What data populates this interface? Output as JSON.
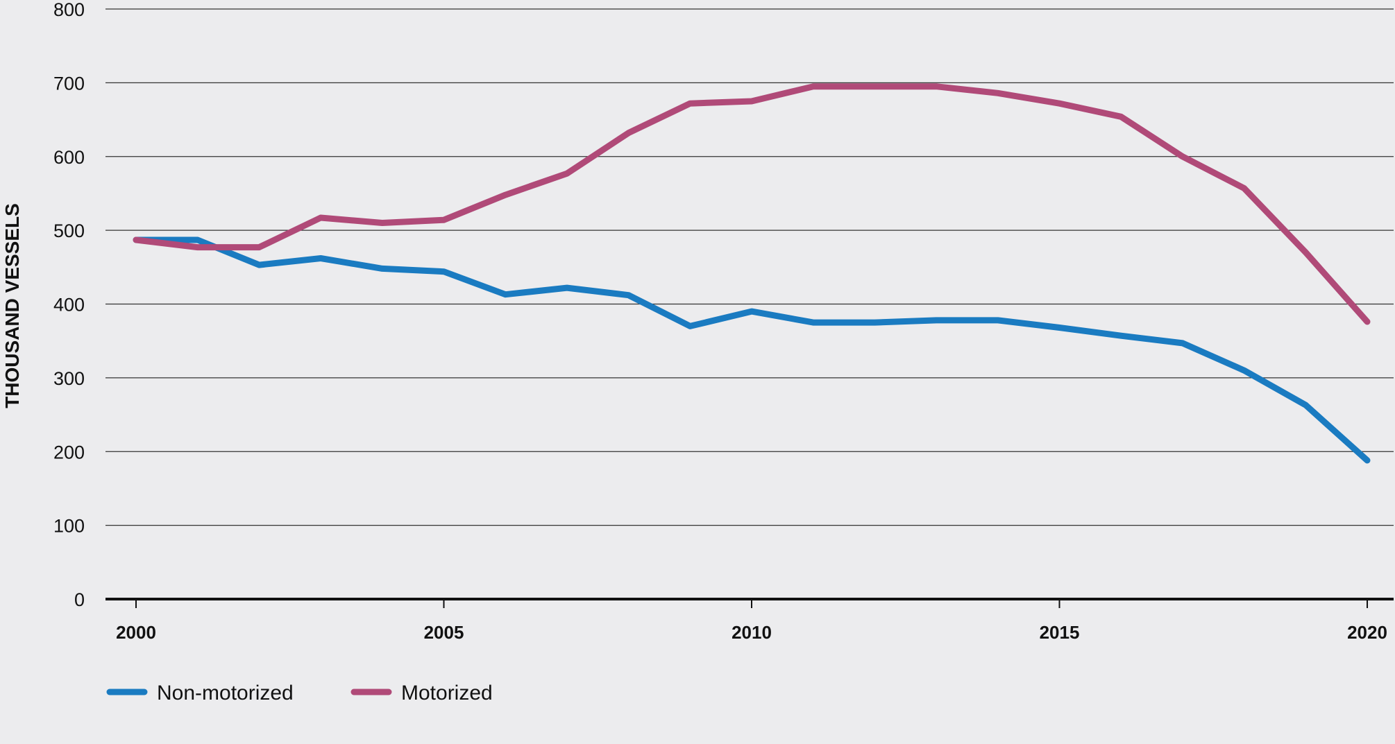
{
  "chart_data": {
    "type": "line",
    "title": "",
    "xlabel": "",
    "ylabel": "THOUSAND VESSELS",
    "xlim": [
      2000,
      2020
    ],
    "ylim": [
      0,
      800
    ],
    "x_ticks": [
      "2000",
      "2005",
      "2010",
      "2015",
      "2020"
    ],
    "y_ticks": [
      "0",
      "100",
      "200",
      "300",
      "400",
      "500",
      "600",
      "700",
      "800"
    ],
    "grid": "horizontal",
    "legend_position": "bottom-left",
    "x": [
      2000,
      2001,
      2002,
      2003,
      2004,
      2005,
      2006,
      2007,
      2008,
      2009,
      2010,
      2011,
      2012,
      2013,
      2014,
      2015,
      2016,
      2017,
      2018,
      2019,
      2020
    ],
    "series": [
      {
        "name": "Non-motorized",
        "color": "#1a7bc1",
        "values": [
          487,
          487,
          453,
          462,
          448,
          444,
          413,
          422,
          412,
          370,
          390,
          375,
          375,
          378,
          378,
          368,
          357,
          347,
          310,
          263,
          188
        ]
      },
      {
        "name": "Motorized",
        "color": "#b04a78",
        "values": [
          487,
          477,
          477,
          517,
          510,
          514,
          548,
          577,
          632,
          672,
          675,
          695,
          695,
          695,
          686,
          672,
          654,
          600,
          557,
          470,
          376
        ]
      }
    ]
  }
}
